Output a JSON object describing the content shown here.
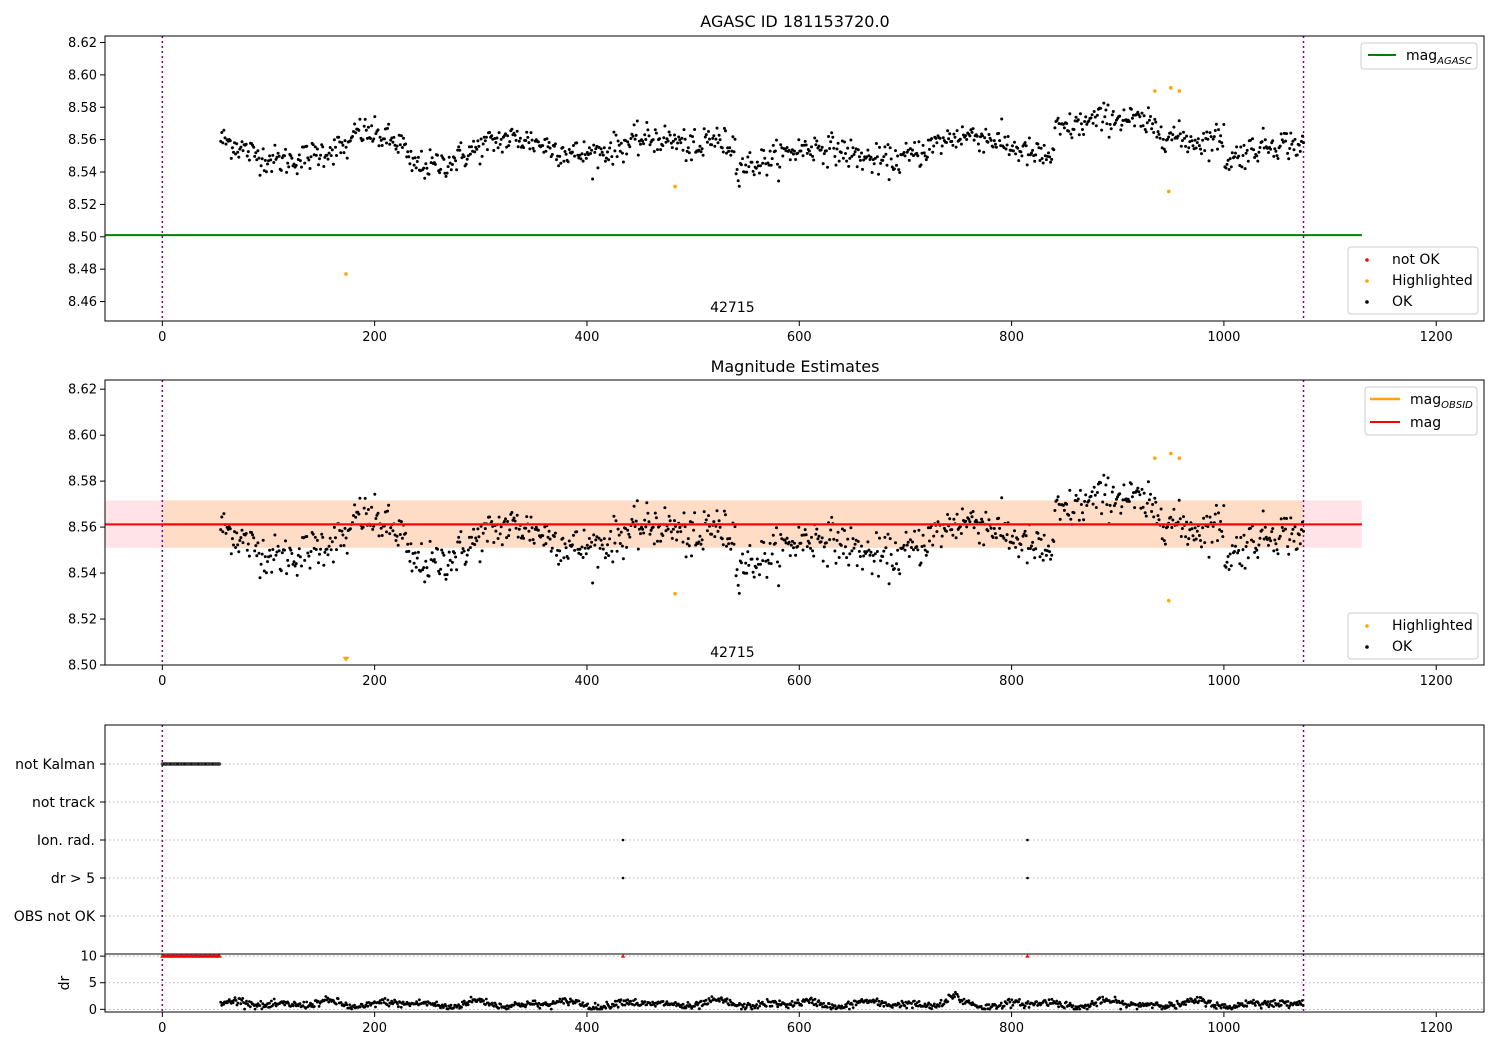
{
  "colors": {
    "ok": "#000000",
    "highlighted": "#ffa500",
    "not_ok": "#ff0000",
    "agasc_line": "#008000",
    "mag_line": "#ff0000",
    "mag_obsid": "#ffa500",
    "band_mag": "#ffc0cb",
    "band_obsid": "#ffdab9",
    "obs_boundary": "#800080",
    "grid": "#b0b0b0"
  },
  "chart_data": [
    {
      "type": "scatter",
      "title": "AGASC ID 181153720.0",
      "xlim": [
        -54,
        1245
      ],
      "ylim": [
        8.448,
        8.624
      ],
      "xticks": [
        "0",
        "200",
        "400",
        "600",
        "800",
        "1000",
        "1200"
      ],
      "xtick_values": [
        0,
        200,
        400,
        600,
        800,
        1000,
        1200
      ],
      "yticks": [
        "8.46",
        "8.48",
        "8.50",
        "8.52",
        "8.54",
        "8.56",
        "8.58",
        "8.60",
        "8.62"
      ],
      "ytick_values": [
        8.46,
        8.48,
        8.5,
        8.52,
        8.54,
        8.56,
        8.58,
        8.6,
        8.62
      ],
      "ok_points": {
        "x_start": 55,
        "x_end": 1075,
        "count": 1020,
        "baseline": 8.553,
        "scatter": 0.008
      },
      "highlighted_points": [
        {
          "x": 173,
          "y": 8.477
        },
        {
          "x": 483,
          "y": 8.531
        },
        {
          "x": 935,
          "y": 8.59
        },
        {
          "x": 948,
          "y": 8.528
        },
        {
          "x": 950,
          "y": 8.592
        },
        {
          "x": 958,
          "y": 8.59
        }
      ],
      "agasc_mag": 8.501,
      "agasc_xrange": [
        -54,
        1130
      ],
      "obs_boundaries": [
        0,
        1075
      ],
      "obsid_label": "42715",
      "obsid_label_x": 537,
      "legend_upper": [
        {
          "label": "mag",
          "sub": "AGASC",
          "kind": "line",
          "color_key": "agasc_line"
        }
      ],
      "legend_lower": [
        {
          "label": "not OK",
          "kind": "dot",
          "color_key": "not_ok"
        },
        {
          "label": "Highlighted",
          "kind": "dot",
          "color_key": "highlighted"
        },
        {
          "label": "OK",
          "kind": "dot",
          "color_key": "ok"
        }
      ]
    },
    {
      "type": "scatter",
      "title": "Magnitude Estimates",
      "xlim": [
        -54,
        1245
      ],
      "ylim": [
        8.5,
        8.624
      ],
      "xticks": [
        "0",
        "200",
        "400",
        "600",
        "800",
        "1000",
        "1200"
      ],
      "xtick_values": [
        0,
        200,
        400,
        600,
        800,
        1000,
        1200
      ],
      "yticks": [
        "8.50",
        "8.52",
        "8.54",
        "8.56",
        "8.58",
        "8.60",
        "8.62"
      ],
      "ytick_values": [
        8.5,
        8.52,
        8.54,
        8.56,
        8.58,
        8.6,
        8.62
      ],
      "mag": 8.5612,
      "mag_band": [
        8.551,
        8.5716
      ],
      "mag_xrange": [
        -54,
        1130
      ],
      "obsid_mag": 8.5612,
      "obsid_band": [
        8.551,
        8.5716
      ],
      "obsid_xrange": [
        0,
        1075
      ],
      "highlighted_points": [
        {
          "x": 483,
          "y": 8.531
        },
        {
          "x": 935,
          "y": 8.59
        },
        {
          "x": 948,
          "y": 8.528
        },
        {
          "x": 950,
          "y": 8.592
        },
        {
          "x": 958,
          "y": 8.59
        }
      ],
      "offscale_marker": {
        "x": 173,
        "y": 8.501
      },
      "obs_boundaries": [
        0,
        1075
      ],
      "obsid_label": "42715",
      "obsid_label_x": 537,
      "legend_upper": [
        {
          "label": "mag",
          "sub": "OBSID",
          "kind": "line",
          "color_key": "mag_obsid"
        },
        {
          "label": "mag",
          "kind": "line",
          "color_key": "mag_line"
        }
      ],
      "legend_lower": [
        {
          "label": "Highlighted",
          "kind": "dot",
          "color_key": "highlighted"
        },
        {
          "label": "OK",
          "kind": "dot",
          "color_key": "ok"
        }
      ]
    },
    {
      "type": "scatter",
      "title": "",
      "xlim": [
        -54,
        1245
      ],
      "categories": [
        "not Kalman",
        "not track",
        "Ion. rad.",
        "dr > 5",
        "OBS not OK"
      ],
      "flags": {
        "not Kalman": {
          "ranges": [
            [
              0,
              55
            ]
          ],
          "points": []
        },
        "not track": {
          "ranges": [],
          "points": []
        },
        "Ion. rad.": {
          "ranges": [],
          "points": [
            434,
            815
          ]
        },
        "dr > 5": {
          "ranges": [],
          "points": [
            434,
            815
          ]
        },
        "OBS not OK": {
          "ranges": [],
          "points": []
        }
      },
      "obs_boundaries": [
        0,
        1075
      ]
    },
    {
      "type": "scatter",
      "title": "",
      "xlim": [
        -54,
        1245
      ],
      "ylim": [
        -0.5,
        10.4
      ],
      "ylabel": "dr",
      "xticks": [
        "0",
        "200",
        "400",
        "600",
        "800",
        "1000",
        "1200"
      ],
      "xtick_values": [
        0,
        200,
        400,
        600,
        800,
        1000,
        1200
      ],
      "yticks": [
        "0",
        "5",
        "10"
      ],
      "ytick_values": [
        0,
        5,
        10
      ],
      "clipped_markers": {
        "value": 10,
        "ranges": [
          [
            0,
            55
          ]
        ],
        "points": [
          434,
          815
        ]
      },
      "dr_points": {
        "x_start": 55,
        "x_end": 1075,
        "baseline": 1.0
      },
      "obs_boundaries": [
        0,
        1075
      ]
    }
  ]
}
